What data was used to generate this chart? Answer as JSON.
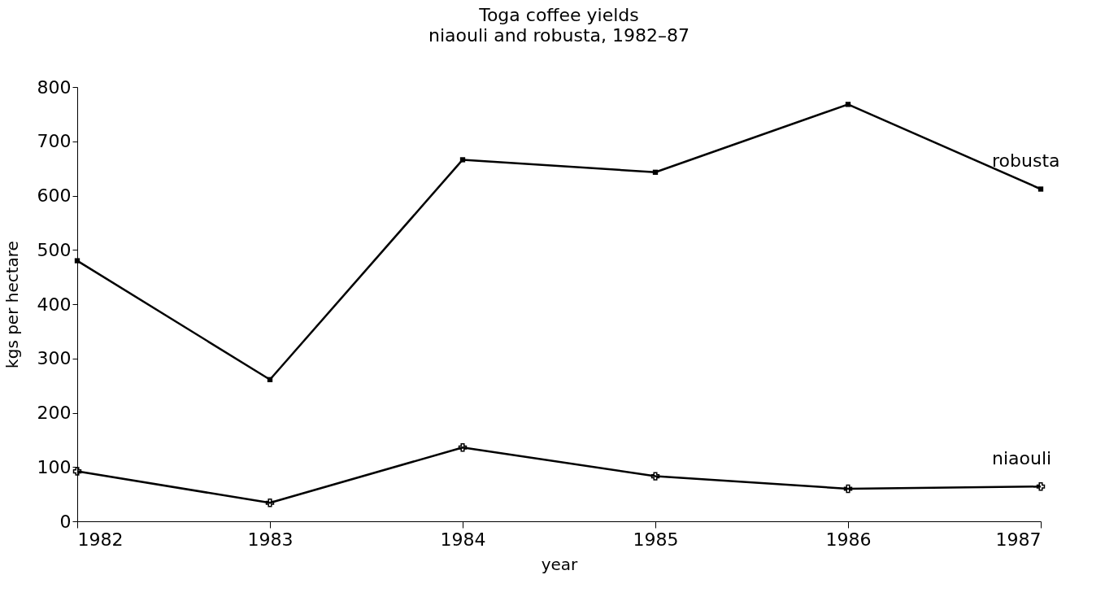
{
  "chart_data": {
    "type": "line",
    "title": "Toga coffee yields",
    "subtitle": "niaouli and robusta, 1982–87",
    "xlabel": "year",
    "ylabel": "kgs per hectare",
    "x": [
      1982,
      1983,
      1984,
      1985,
      1986,
      1987
    ],
    "series": [
      {
        "name": "robusta",
        "color": "#000000",
        "marker": "square",
        "values": [
          480,
          261,
          666,
          643,
          768,
          612
        ]
      },
      {
        "name": "niaouli",
        "color": "#000000",
        "marker": "cross",
        "values": [
          92,
          34,
          136,
          83,
          60,
          64
        ]
      }
    ],
    "xlim": [
      1982,
      1987
    ],
    "xticks": [
      1982,
      1983,
      1984,
      1985,
      1986,
      1987
    ],
    "ylim": [
      0,
      800
    ],
    "yticks": [
      0,
      100,
      200,
      300,
      400,
      500,
      600,
      700,
      800
    ],
    "grid": false,
    "line_style": "solid"
  }
}
